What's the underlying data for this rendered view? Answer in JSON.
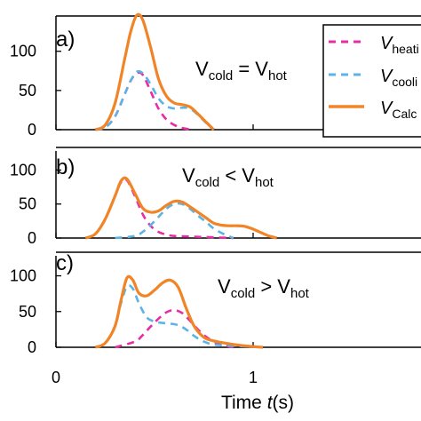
{
  "figure": {
    "xlabel_prefix": "Time ",
    "xlabel_var": "t",
    "xlabel_suffix": "(s)",
    "x_ticks": [
      "0",
      "1"
    ],
    "legend": [
      {
        "main": "V",
        "sub": "heati"
      },
      {
        "main": "V",
        "sub": "cooli"
      },
      {
        "main": "V",
        "sub": "Calc"
      }
    ]
  },
  "colors": {
    "heating": "#e62da6",
    "cooling": "#5cb3e6",
    "calc": "#f08427"
  },
  "chart_data": [
    {
      "type": "line",
      "panel_label": "a)",
      "annotation": {
        "left": "V",
        "left_sub": "cold",
        "op": " = ",
        "right": "V",
        "right_sub": "hot"
      },
      "xlim": [
        0,
        1.86
      ],
      "ylim": [
        0,
        145
      ],
      "y_ticks": [
        "0",
        "50",
        "100"
      ],
      "series": [
        {
          "name": "heating",
          "style": "dashed",
          "x": [
            0.2,
            0.25,
            0.3,
            0.35,
            0.38,
            0.41,
            0.44,
            0.48,
            0.52,
            0.56,
            0.6,
            0.64,
            0.7
          ],
          "y": [
            0,
            3,
            17,
            46,
            63,
            72,
            70,
            49,
            27,
            13,
            6,
            2,
            0
          ]
        },
        {
          "name": "cooling",
          "style": "dashed",
          "x": [
            0.2,
            0.25,
            0.3,
            0.35,
            0.38,
            0.41,
            0.44,
            0.48,
            0.52,
            0.56,
            0.6,
            0.64,
            0.68,
            0.72,
            0.76,
            0.8
          ],
          "y": [
            0,
            3,
            17,
            46,
            63,
            74,
            72,
            58,
            40,
            30,
            27,
            28,
            27,
            19,
            9,
            0
          ]
        },
        {
          "name": "calc",
          "style": "solid",
          "x": [
            0.2,
            0.25,
            0.3,
            0.35,
            0.38,
            0.41,
            0.44,
            0.48,
            0.52,
            0.56,
            0.6,
            0.64,
            0.68,
            0.72,
            0.76,
            0.8
          ],
          "y": [
            0,
            6,
            34,
            92,
            126,
            146,
            140,
            105,
            65,
            43,
            34,
            32,
            29,
            20,
            10,
            0
          ]
        }
      ]
    },
    {
      "type": "line",
      "panel_label": "b)",
      "annotation": {
        "left": "V",
        "left_sub": "cold",
        "op": " < ",
        "right": "V",
        "right_sub": "hot"
      },
      "xlim": [
        0,
        1.86
      ],
      "ylim": [
        0,
        128
      ],
      "y_ticks": [
        "0",
        "50",
        "100"
      ],
      "series": [
        {
          "name": "heating",
          "style": "dashed",
          "x": [
            0.15,
            0.2,
            0.25,
            0.3,
            0.33,
            0.36,
            0.4,
            0.44,
            0.48,
            0.52,
            0.56,
            0.6,
            0.7,
            0.8,
            0.9
          ],
          "y": [
            0,
            6,
            28,
            62,
            82,
            85,
            62,
            35,
            18,
            9,
            5,
            3,
            2,
            1,
            0
          ]
        },
        {
          "name": "cooling",
          "style": "dashed",
          "x": [
            0.3,
            0.4,
            0.44,
            0.48,
            0.52,
            0.56,
            0.6,
            0.64,
            0.68,
            0.72,
            0.76,
            0.8,
            0.85,
            0.9
          ],
          "y": [
            0,
            3,
            9,
            19,
            31,
            43,
            50,
            50,
            43,
            33,
            24,
            14,
            6,
            0
          ]
        },
        {
          "name": "calc",
          "style": "solid",
          "x": [
            0.15,
            0.2,
            0.25,
            0.3,
            0.33,
            0.36,
            0.4,
            0.44,
            0.48,
            0.52,
            0.56,
            0.6,
            0.64,
            0.68,
            0.72,
            0.76,
            0.8,
            0.84,
            0.88,
            0.92,
            0.96,
            1.0,
            1.04,
            1.08,
            1.12
          ],
          "y": [
            0,
            6,
            28,
            62,
            84,
            87,
            66,
            44,
            38,
            40,
            48,
            54,
            53,
            46,
            38,
            30,
            22,
            19,
            18,
            18,
            17,
            13,
            8,
            3,
            0
          ]
        }
      ]
    },
    {
      "type": "line",
      "panel_label": "c)",
      "annotation": {
        "left": "V",
        "left_sub": "cold",
        "op": " > ",
        "right": "V",
        "right_sub": "hot"
      },
      "xlim": [
        0,
        1.86
      ],
      "ylim": [
        0,
        128
      ],
      "y_ticks": [
        "0",
        "50",
        "100"
      ],
      "series": [
        {
          "name": "heating",
          "style": "dashed",
          "x": [
            0.3,
            0.4,
            0.44,
            0.48,
            0.52,
            0.56,
            0.6,
            0.64,
            0.68,
            0.72,
            0.76,
            0.8,
            0.85,
            0.9
          ],
          "y": [
            0,
            8,
            17,
            29,
            40,
            49,
            52,
            48,
            37,
            25,
            15,
            8,
            3,
            0
          ]
        },
        {
          "name": "cooling",
          "style": "dashed",
          "x": [
            0.2,
            0.25,
            0.3,
            0.33,
            0.36,
            0.39,
            0.42,
            0.46,
            0.5,
            0.54,
            0.58,
            0.62,
            0.66,
            0.7,
            0.75,
            0.8,
            0.9,
            1.0,
            1.05
          ],
          "y": [
            0,
            6,
            30,
            62,
            85,
            82,
            62,
            42,
            36,
            34,
            33,
            31,
            25,
            16,
            8,
            4,
            2,
            1,
            0
          ]
        },
        {
          "name": "calc",
          "style": "solid",
          "x": [
            0.2,
            0.25,
            0.3,
            0.33,
            0.36,
            0.39,
            0.42,
            0.46,
            0.5,
            0.54,
            0.58,
            0.62,
            0.66,
            0.7,
            0.75,
            0.8,
            0.9,
            1.0,
            1.05
          ],
          "y": [
            0,
            6,
            30,
            66,
            97,
            94,
            76,
            72,
            80,
            90,
            94,
            84,
            55,
            30,
            14,
            9,
            4,
            1,
            0
          ]
        }
      ]
    }
  ]
}
